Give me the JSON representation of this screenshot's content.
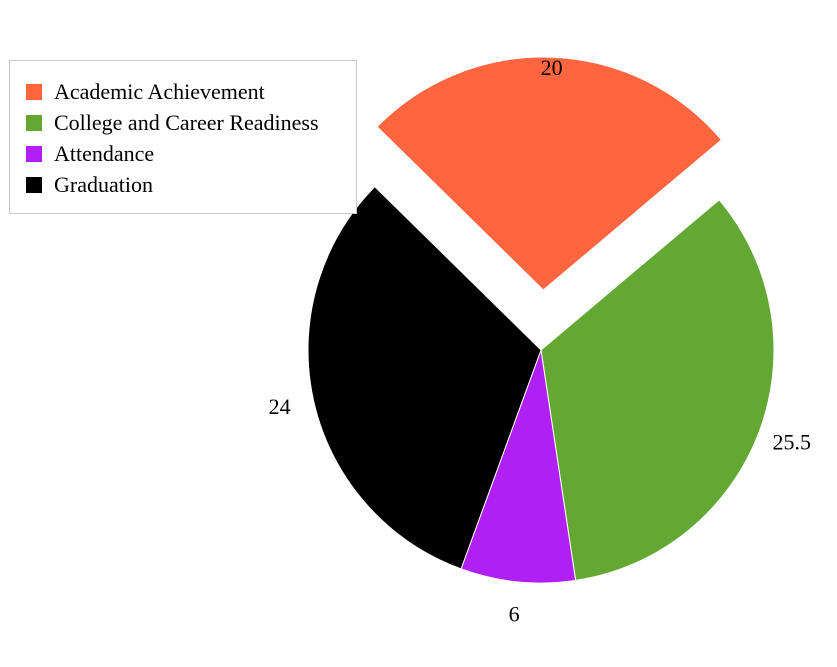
{
  "chart_data": {
    "type": "pie",
    "title": "",
    "categories": [
      "Academic Achievement",
      "College and Career Readiness",
      "Attendance",
      "Graduation"
    ],
    "values": [
      20,
      25.5,
      6,
      24
    ],
    "value_labels": [
      "20",
      "25.5",
      "6",
      "24"
    ],
    "colors": [
      "#ff6640",
      "#62a832",
      "#b01ff4",
      "#000000"
    ],
    "exploded": [
      "Academic Achievement"
    ],
    "legend": "top-left",
    "slice_border": "#ffffff"
  }
}
